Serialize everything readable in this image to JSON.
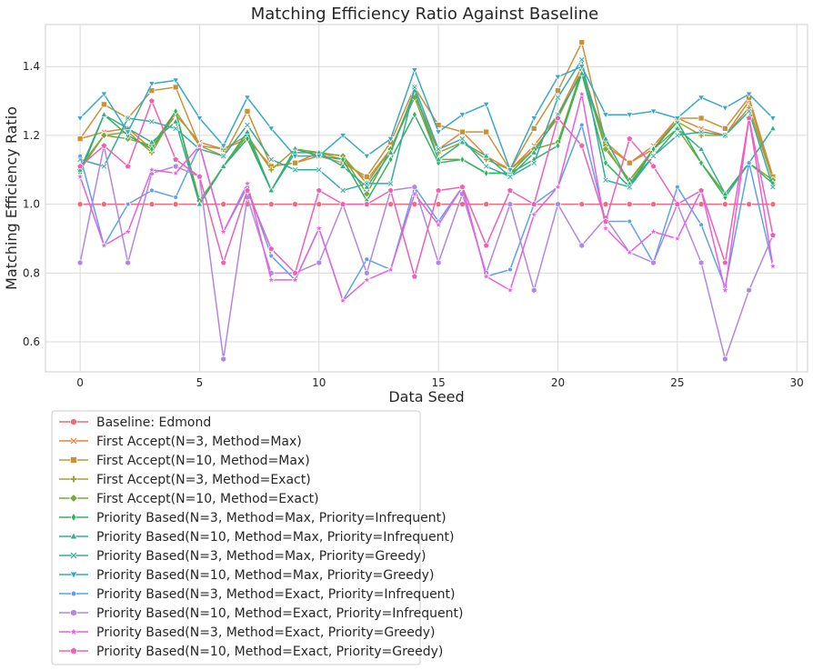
{
  "chart_data": {
    "type": "line",
    "title": "Matching Efficiency Ratio Against Baseline",
    "xlabel": "Data Seed",
    "ylabel": "Matching Efficiency Ratio",
    "xlim": [
      -1.45,
      30.45
    ],
    "ylim": [
      0.513,
      1.522
    ],
    "xticks": [
      0,
      5,
      10,
      15,
      20,
      25,
      30
    ],
    "yticks": [
      0.6,
      0.8,
      1.0,
      1.2,
      1.4
    ],
    "grid": true,
    "legend_position": "bottom-left-outside",
    "x": [
      0,
      1,
      2,
      3,
      4,
      5,
      6,
      7,
      8,
      9,
      10,
      11,
      12,
      13,
      14,
      15,
      16,
      17,
      18,
      19,
      20,
      21,
      22,
      23,
      24,
      25,
      26,
      27,
      28,
      29
    ],
    "series": [
      {
        "name": "Baseline: Edmond",
        "color": "#f0697a",
        "marker": "circle",
        "values": [
          1,
          1,
          1,
          1,
          1,
          1,
          1,
          1,
          1,
          1,
          1,
          1,
          1,
          1,
          1,
          1,
          1,
          1,
          1,
          1,
          1,
          1,
          1,
          1,
          1,
          1,
          1,
          1,
          1,
          1
        ]
      },
      {
        "name": "First Accept(N=3, Method=Max)",
        "color": "#e5823a",
        "marker": "x",
        "values": [
          1.19,
          1.21,
          1.22,
          1.16,
          1.26,
          1.18,
          1.16,
          1.19,
          1.11,
          1.12,
          1.15,
          1.13,
          1.07,
          1.16,
          1.32,
          1.16,
          1.21,
          1.14,
          1.1,
          1.17,
          1.26,
          1.4,
          1.17,
          1.12,
          1.17,
          1.25,
          1.22,
          1.2,
          1.3,
          1.07
        ]
      },
      {
        "name": "First Accept(N=10, Method=Max)",
        "color": "#c8923a",
        "marker": "square",
        "values": [
          1.19,
          1.29,
          1.25,
          1.33,
          1.34,
          1.17,
          1.14,
          1.27,
          1.11,
          1.12,
          1.14,
          1.12,
          1.08,
          1.18,
          1.34,
          1.23,
          1.21,
          1.21,
          1.1,
          1.22,
          1.33,
          1.47,
          1.18,
          1.12,
          1.16,
          1.25,
          1.25,
          1.22,
          1.31,
          1.08
        ]
      },
      {
        "name": "First Accept(N=3, Method=Exact)",
        "color": "#a1a137",
        "marker": "plus",
        "values": [
          1.11,
          1.2,
          1.21,
          1.15,
          1.27,
          1.17,
          1.16,
          1.2,
          1.1,
          1.16,
          1.15,
          1.14,
          1.06,
          1.16,
          1.32,
          1.15,
          1.18,
          1.13,
          1.1,
          1.16,
          1.25,
          1.39,
          1.17,
          1.06,
          1.16,
          1.24,
          1.2,
          1.2,
          1.28,
          1.07
        ]
      },
      {
        "name": "First Accept(N=10, Method=Exact)",
        "color": "#75ab3a",
        "marker": "diamond",
        "values": [
          1.1,
          1.2,
          1.19,
          1.17,
          1.27,
          1.01,
          1.11,
          1.2,
          1.04,
          1.16,
          1.15,
          1.14,
          1.03,
          1.16,
          1.31,
          1.13,
          1.13,
          1.09,
          1.09,
          1.16,
          1.18,
          1.39,
          1.16,
          1.07,
          1.16,
          1.22,
          1.12,
          1.03,
          1.12,
          1.07
        ]
      },
      {
        "name": "Priority Based(N=3, Method=Max, Priority=Infrequent)",
        "color": "#2eb35f",
        "marker": "thin-diamond",
        "values": [
          1.09,
          1.26,
          1.2,
          1.16,
          1.27,
          1.0,
          1.11,
          1.19,
          1.04,
          1.16,
          1.14,
          1.13,
          1.01,
          1.13,
          1.26,
          1.12,
          1.13,
          1.09,
          1.09,
          1.13,
          1.17,
          1.38,
          1.12,
          1.05,
          1.16,
          1.24,
          1.12,
          1.02,
          1.12,
          1.06
        ]
      },
      {
        "name": "Priority Based(N=10, Method=Max, Priority=Infrequent)",
        "color": "#34ad8c",
        "marker": "triangle-up",
        "values": [
          1.1,
          1.26,
          1.22,
          1.18,
          1.24,
          1.0,
          1.11,
          1.21,
          1.04,
          1.15,
          1.15,
          1.11,
          1.05,
          1.15,
          1.33,
          1.13,
          1.18,
          1.14,
          1.08,
          1.15,
          1.26,
          1.38,
          1.19,
          1.06,
          1.14,
          1.22,
          1.16,
          1.03,
          1.12,
          1.22
        ]
      },
      {
        "name": "Priority Based(N=3, Method=Max, Priority=Greedy)",
        "color": "#36ab9f",
        "marker": "x-filled",
        "values": [
          1.13,
          1.11,
          1.25,
          1.24,
          1.22,
          1.16,
          1.14,
          1.23,
          1.13,
          1.1,
          1.1,
          1.04,
          1.06,
          1.06,
          1.34,
          1.16,
          1.19,
          1.11,
          1.08,
          1.12,
          1.31,
          1.42,
          1.07,
          1.05,
          1.14,
          1.2,
          1.21,
          1.2,
          1.27,
          1.05
        ]
      },
      {
        "name": "Priority Based(N=10, Method=Max, Priority=Greedy)",
        "color": "#38a8c4",
        "marker": "triangle-down",
        "values": [
          1.25,
          1.32,
          1.21,
          1.35,
          1.36,
          1.25,
          1.17,
          1.31,
          1.22,
          1.14,
          1.14,
          1.2,
          1.14,
          1.19,
          1.39,
          1.21,
          1.26,
          1.29,
          1.1,
          1.25,
          1.37,
          1.4,
          1.26,
          1.26,
          1.27,
          1.25,
          1.31,
          1.28,
          1.32,
          1.25
        ]
      },
      {
        "name": "Priority Based(N=3, Method=Exact, Priority=Infrequent)",
        "color": "#5ea1ec",
        "marker": "circle-small",
        "values": [
          1.14,
          0.88,
          1.0,
          1.04,
          1.02,
          1.17,
          0.92,
          1.05,
          0.85,
          0.78,
          0.93,
          0.72,
          0.84,
          0.81,
          1.05,
          0.95,
          1.05,
          0.79,
          0.81,
          1.0,
          1.05,
          1.23,
          0.95,
          0.95,
          0.83,
          1.05,
          0.94,
          0.76,
          1.12,
          0.82
        ]
      },
      {
        "name": "Priority Based(N=10, Method=Exact, Priority=Infrequent)",
        "color": "#b088e3",
        "marker": "hexagon",
        "values": [
          0.83,
          1.17,
          0.83,
          1.09,
          1.11,
          1.08,
          0.55,
          1.02,
          0.8,
          0.8,
          0.83,
          1.0,
          0.8,
          1.04,
          1.05,
          0.83,
          1.03,
          0.8,
          1.0,
          0.75,
          1.0,
          0.88,
          0.96,
          0.86,
          0.83,
          1.0,
          0.83,
          0.55,
          0.75,
          0.91
        ]
      },
      {
        "name": "Priority Based(N=3, Method=Exact, Priority=Greedy)",
        "color": "#e85fe0",
        "marker": "star",
        "values": [
          1.08,
          0.88,
          0.92,
          1.1,
          1.09,
          1.17,
          0.92,
          1.06,
          0.78,
          0.78,
          0.93,
          0.72,
          0.78,
          0.81,
          1.03,
          0.94,
          1.05,
          0.79,
          0.75,
          0.97,
          1.05,
          1.32,
          0.93,
          0.86,
          0.92,
          0.9,
          1.04,
          0.75,
          1.25,
          0.82
        ]
      },
      {
        "name": "Priority Based(N=10, Method=Exact, Priority=Greedy)",
        "color": "#ee60b4",
        "marker": "pentagon",
        "values": [
          1.11,
          1.17,
          1.11,
          1.3,
          1.13,
          1.08,
          0.83,
          1.04,
          0.87,
          0.8,
          1.04,
          1.0,
          1.0,
          1.04,
          0.79,
          1.04,
          1.05,
          0.88,
          1.04,
          1.0,
          1.25,
          1.17,
          0.95,
          1.19,
          1.11,
          1.0,
          1.04,
          0.83,
          1.25,
          0.91
        ]
      }
    ]
  }
}
